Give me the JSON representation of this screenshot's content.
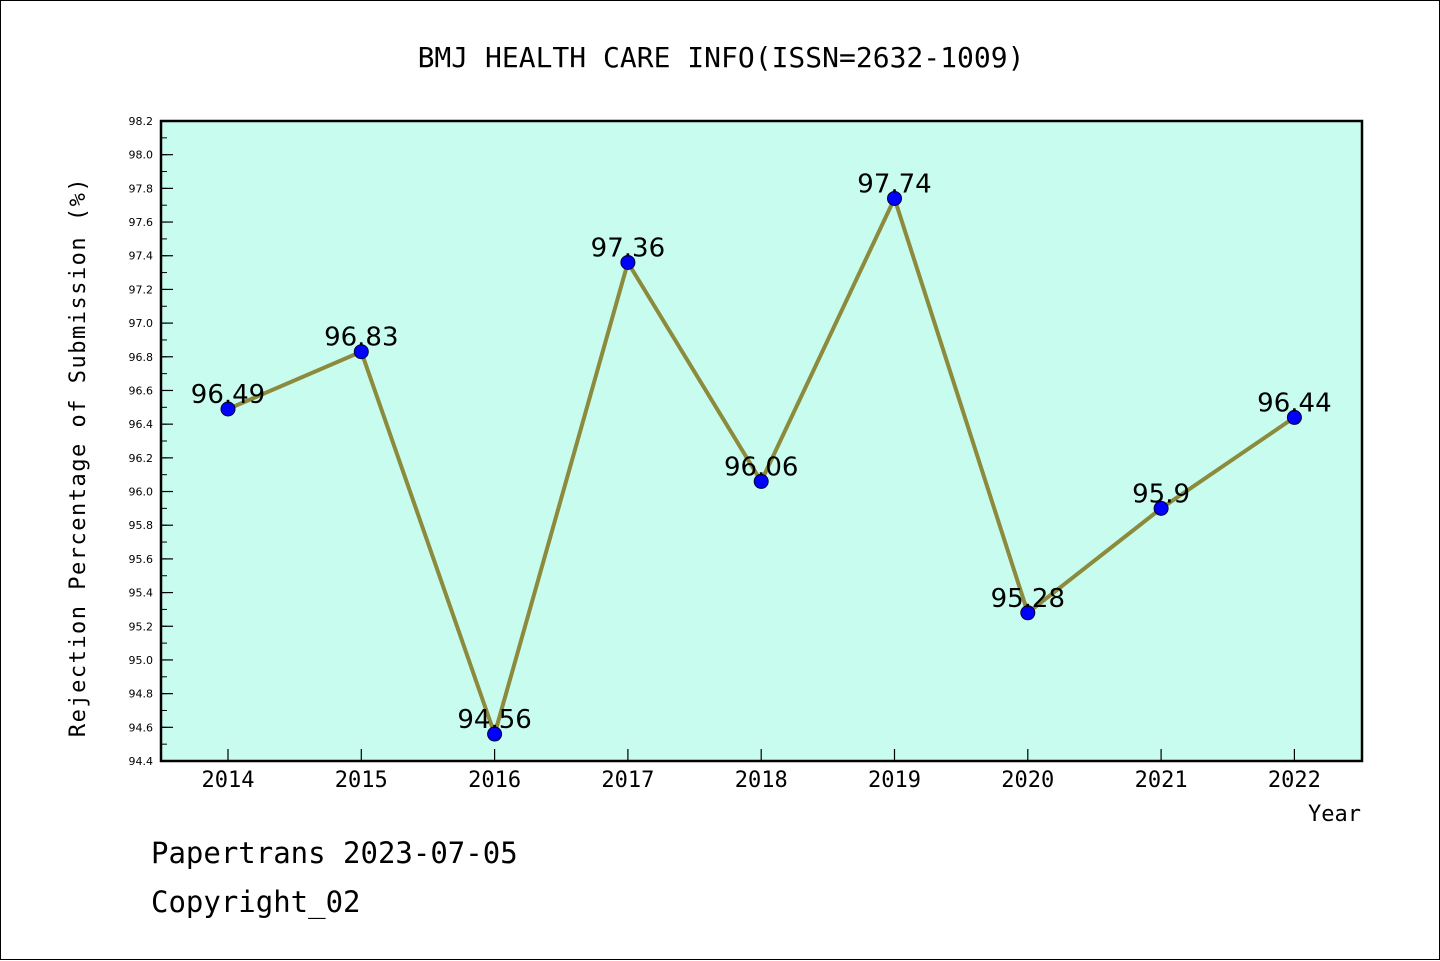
{
  "chart_data": {
    "type": "line",
    "title": "BMJ HEALTH CARE INFO(ISSN=2632-1009)",
    "xlabel": "Year",
    "ylabel": "Rejection Percentage of Submission (%)",
    "categories": [
      "2014",
      "2015",
      "2016",
      "2017",
      "2018",
      "2019",
      "2020",
      "2021",
      "2022"
    ],
    "series": [
      {
        "values": [
          96.49,
          96.83,
          94.56,
          97.36,
          96.06,
          97.74,
          95.28,
          95.9,
          96.44
        ],
        "data_labels": [
          "96.49",
          "96.83",
          "94.56",
          "97.36",
          "96.06",
          "97.74",
          "95.28",
          "95.9",
          "96.44"
        ]
      }
    ],
    "ylim": [
      94.4,
      98.2
    ],
    "yticks": [
      "94.4",
      "94.6",
      "94.8",
      "95.0",
      "95.2",
      "95.4",
      "95.6",
      "95.8",
      "96.0",
      "96.2",
      "96.4",
      "96.6",
      "96.8",
      "97.0",
      "97.2",
      "97.4",
      "97.6",
      "97.8",
      "98.0",
      "98.2"
    ],
    "grid": false,
    "legend": "none",
    "colors": {
      "plot_background": "#c8fcee",
      "line": "#8c8a3c",
      "marker": "#0000ff",
      "axis": "#000000"
    }
  },
  "footer": {
    "line1": "Papertrans 2023-07-05",
    "line2": "Copyright_02"
  }
}
